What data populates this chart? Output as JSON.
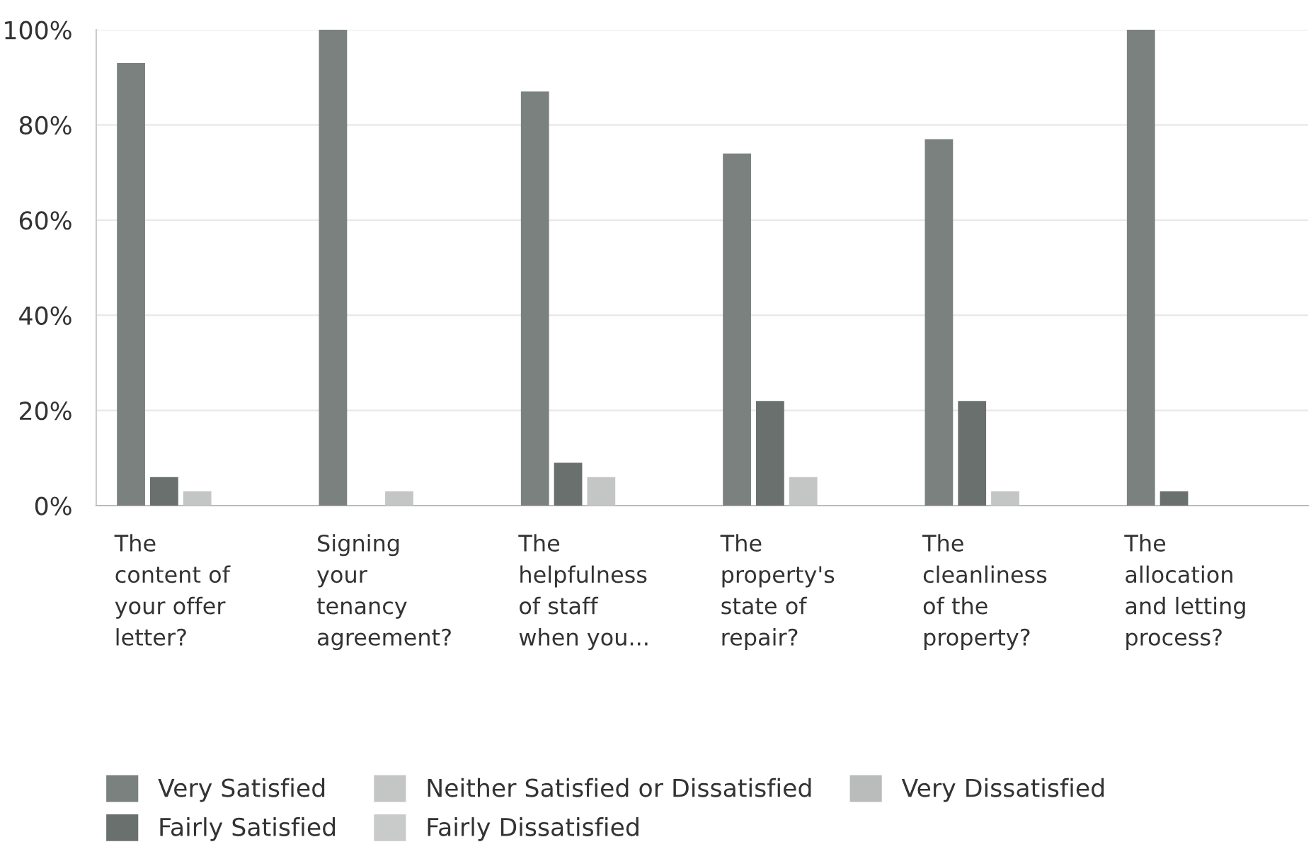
{
  "chart_data": {
    "type": "bar",
    "categories": [
      "The\ncontent of\nyour offer\nletter?",
      "Signing\nyour\ntenancy\nagreement?",
      "The\nhelpfulness\nof staff\nwhen you...",
      "The\nproperty's\nstate of\nrepair?",
      "The\ncleanliness\nof the\nproperty?",
      "The\nallocation\nand letting\nprocess?"
    ],
    "series": [
      {
        "name": "Very Satisfied",
        "color": "#7a817f",
        "values": [
          93,
          100,
          87,
          74,
          77,
          100
        ]
      },
      {
        "name": "Fairly Satisfied",
        "color": "#6a706e",
        "values": [
          6,
          0,
          9,
          22,
          22,
          3
        ]
      },
      {
        "name": "Neither Satisfied or Dissatisfied",
        "color": "#c4c6c5",
        "values": [
          3,
          3,
          6,
          6,
          3,
          0
        ]
      },
      {
        "name": "Fairly Dissatisfied",
        "color": "#c9cbca",
        "values": [
          0,
          0,
          0,
          0,
          0,
          0
        ]
      },
      {
        "name": "Very Dissatisfied",
        "color": "#b9bcbb",
        "values": [
          0,
          0,
          0,
          0,
          0,
          0
        ]
      }
    ],
    "ylim": [
      0,
      100
    ],
    "yticks": [
      {
        "value": 0,
        "label": "0%"
      },
      {
        "value": 20,
        "label": "20%"
      },
      {
        "value": 40,
        "label": "40%"
      },
      {
        "value": 60,
        "label": "60%"
      },
      {
        "value": 80,
        "label": "80%"
      },
      {
        "value": 100,
        "label": "100%"
      }
    ],
    "grid": "y",
    "legend": "bottom"
  }
}
